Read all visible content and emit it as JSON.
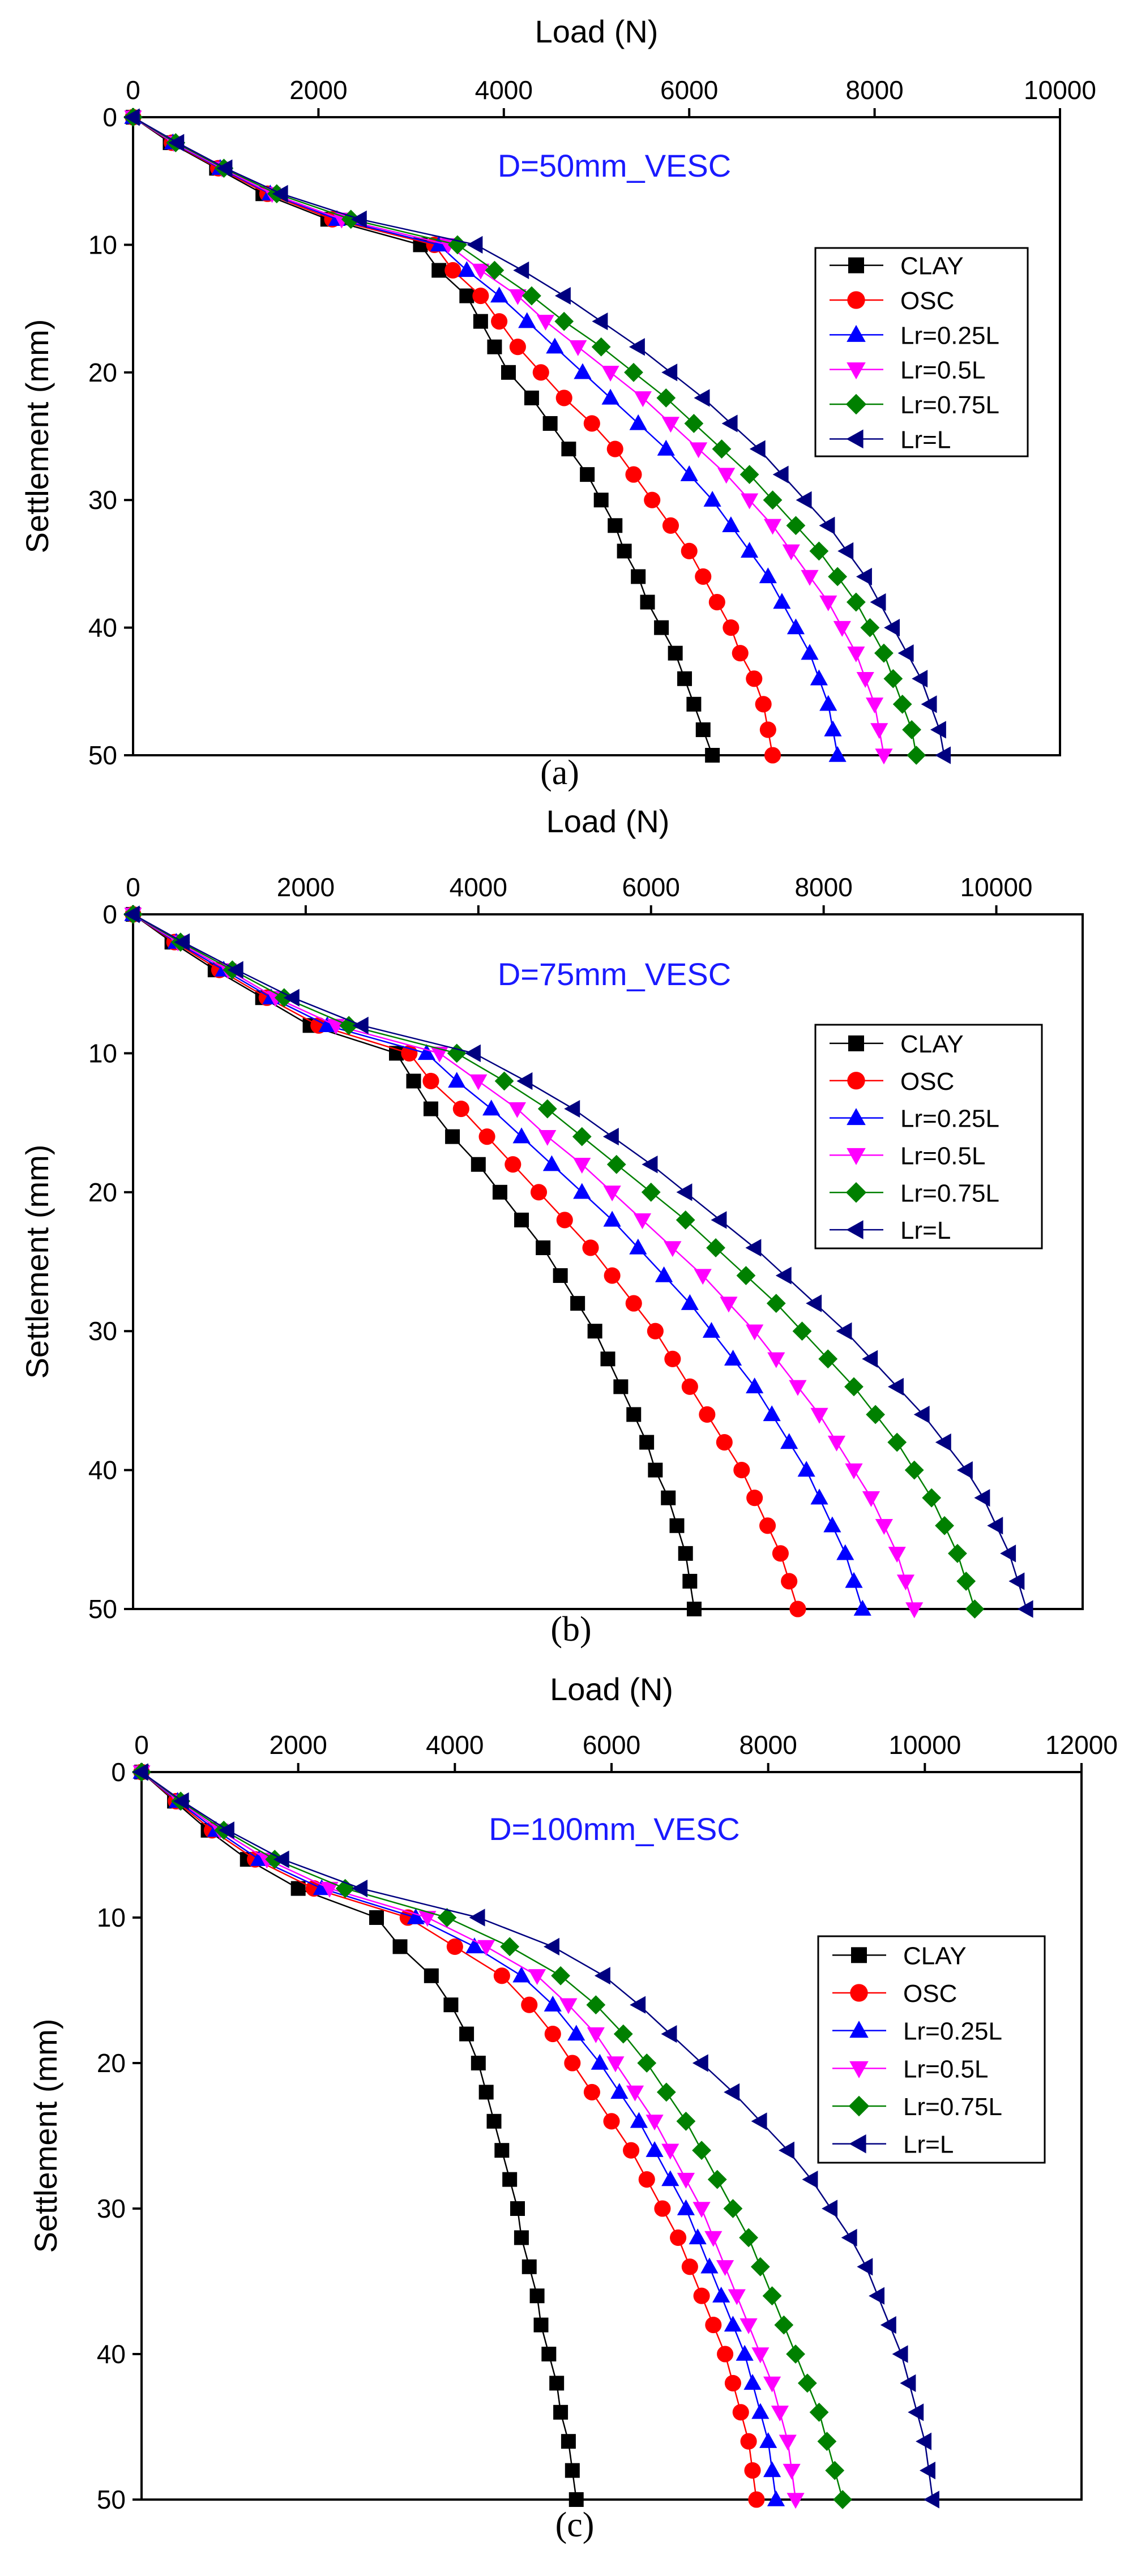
{
  "colors": {
    "axis": "#000000",
    "text": "#000000",
    "title": "#1a1aff",
    "clay": "#000000",
    "osc": "#ff0000",
    "lr025": "#0000ff",
    "lr05": "#ff00ff",
    "lr075": "#008000",
    "lr1": "#000080"
  },
  "chart_data": [
    {
      "type": "line",
      "panel_label": "(a)",
      "title": "D=50mm_VESC",
      "xlabel": "Load (N)",
      "ylabel": "Settlement (mm)",
      "xlim": [
        0,
        10000
      ],
      "ylim": [
        0,
        50
      ],
      "x_ticks": [
        0,
        2000,
        4000,
        6000,
        8000,
        10000
      ],
      "x_tick_labels": [
        "0",
        "2000",
        "4000",
        "6000",
        "8000",
        "10000"
      ],
      "y_ticks": [
        0,
        10,
        20,
        30,
        40,
        50
      ],
      "y_tick_labels": [
        "0",
        "10",
        "20",
        "30",
        "40",
        "50"
      ],
      "y_axis_inverted": true,
      "x_axis_position": "top",
      "legend_position": "right",
      "y": [
        0,
        2,
        4,
        6,
        8,
        10,
        12,
        14,
        16,
        18,
        20,
        22,
        24,
        26,
        28,
        30,
        32,
        34,
        36,
        38,
        40,
        42,
        44,
        46,
        48,
        50
      ],
      "series": [
        {
          "name": "CLAY",
          "marker": "square",
          "values": [
            0,
            400,
            900,
            1400,
            2100,
            3100,
            3300,
            3600,
            3750,
            3900,
            4050,
            4300,
            4500,
            4700,
            4900,
            5050,
            5200,
            5300,
            5450,
            5550,
            5700,
            5850,
            5950,
            6050,
            6150,
            6250
          ]
        },
        {
          "name": "OSC",
          "marker": "circle",
          "values": [
            0,
            420,
            920,
            1450,
            2150,
            3250,
            3450,
            3750,
            3950,
            4150,
            4400,
            4650,
            4950,
            5200,
            5400,
            5600,
            5800,
            6000,
            6150,
            6300,
            6450,
            6550,
            6700,
            6800,
            6850,
            6900
          ]
        },
        {
          "name": "Lr=0.25L",
          "marker": "triangle-up",
          "values": [
            0,
            430,
            940,
            1480,
            2200,
            3300,
            3600,
            3950,
            4250,
            4550,
            4850,
            5150,
            5450,
            5750,
            6000,
            6250,
            6450,
            6650,
            6850,
            7000,
            7150,
            7300,
            7400,
            7500,
            7550,
            7600
          ]
        },
        {
          "name": "Lr=0.5L",
          "marker": "triangle-down",
          "values": [
            0,
            440,
            960,
            1500,
            2250,
            3400,
            3750,
            4150,
            4450,
            4800,
            5150,
            5500,
            5800,
            6100,
            6400,
            6650,
            6900,
            7100,
            7300,
            7500,
            7650,
            7800,
            7900,
            8000,
            8050,
            8100
          ]
        },
        {
          "name": "Lr=0.75L",
          "marker": "diamond",
          "values": [
            0,
            460,
            980,
            1550,
            2350,
            3500,
            3900,
            4300,
            4650,
            5050,
            5400,
            5750,
            6050,
            6350,
            6650,
            6900,
            7150,
            7400,
            7600,
            7800,
            7950,
            8100,
            8200,
            8300,
            8400,
            8450
          ]
        },
        {
          "name": "Lr=L",
          "marker": "triangle-left",
          "values": [
            0,
            480,
            1000,
            1600,
            2450,
            3700,
            4200,
            4650,
            5050,
            5450,
            5800,
            6150,
            6450,
            6750,
            7000,
            7250,
            7500,
            7700,
            7900,
            8050,
            8200,
            8350,
            8500,
            8600,
            8700,
            8750
          ]
        }
      ]
    },
    {
      "type": "line",
      "panel_label": "(b)",
      "title": "D=75mm_VESC",
      "xlabel": "Load (N)",
      "ylabel": "Settlement (mm)",
      "xlim": [
        0,
        11000
      ],
      "ylim": [
        0,
        50
      ],
      "x_ticks": [
        0,
        2000,
        4000,
        6000,
        8000,
        10000
      ],
      "x_tick_labels": [
        "0",
        "2000",
        "4000",
        "6000",
        "8000",
        "10000"
      ],
      "y_ticks": [
        0,
        10,
        20,
        30,
        40,
        50
      ],
      "y_tick_labels": [
        "0",
        "10",
        "20",
        "30",
        "40",
        "50"
      ],
      "y_axis_inverted": true,
      "x_axis_position": "top",
      "legend_position": "right",
      "y": [
        0,
        2,
        4,
        6,
        8,
        10,
        12,
        14,
        16,
        18,
        20,
        22,
        24,
        26,
        28,
        30,
        32,
        34,
        36,
        38,
        40,
        42,
        44,
        46,
        48,
        50
      ],
      "series": [
        {
          "name": "CLAY",
          "marker": "square",
          "values": [
            0,
            450,
            950,
            1500,
            2050,
            3050,
            3250,
            3450,
            3700,
            4000,
            4250,
            4500,
            4750,
            4950,
            5150,
            5350,
            5500,
            5650,
            5800,
            5950,
            6050,
            6200,
            6300,
            6400,
            6450,
            6500
          ]
        },
        {
          "name": "OSC",
          "marker": "circle",
          "values": [
            0,
            480,
            1000,
            1550,
            2150,
            3200,
            3450,
            3800,
            4100,
            4400,
            4700,
            5000,
            5300,
            5550,
            5800,
            6050,
            6250,
            6450,
            6650,
            6850,
            7050,
            7200,
            7350,
            7500,
            7600,
            7700
          ]
        },
        {
          "name": "Lr=0.25L",
          "marker": "triangle-up",
          "values": [
            0,
            500,
            1050,
            1600,
            2250,
            3400,
            3750,
            4150,
            4500,
            4850,
            5200,
            5550,
            5850,
            6150,
            6450,
            6700,
            6950,
            7200,
            7400,
            7600,
            7800,
            7950,
            8100,
            8250,
            8350,
            8450
          ]
        },
        {
          "name": "Lr=0.5L",
          "marker": "triangle-down",
          "values": [
            0,
            520,
            1100,
            1650,
            2350,
            3550,
            4000,
            4450,
            4800,
            5200,
            5550,
            5900,
            6250,
            6600,
            6900,
            7200,
            7450,
            7700,
            7950,
            8150,
            8350,
            8550,
            8700,
            8850,
            8950,
            9050
          ]
        },
        {
          "name": "Lr=0.75L",
          "marker": "diamond",
          "values": [
            0,
            550,
            1150,
            1750,
            2500,
            3750,
            4300,
            4800,
            5200,
            5600,
            6000,
            6400,
            6750,
            7100,
            7450,
            7750,
            8050,
            8350,
            8600,
            8850,
            9050,
            9250,
            9400,
            9550,
            9650,
            9750
          ]
        },
        {
          "name": "Lr=L",
          "marker": "triangle-left",
          "values": [
            0,
            580,
            1200,
            1850,
            2650,
            3950,
            4550,
            5100,
            5550,
            6000,
            6400,
            6800,
            7200,
            7550,
            7900,
            8250,
            8550,
            8850,
            9150,
            9400,
            9650,
            9850,
            10000,
            10150,
            10250,
            10350
          ]
        }
      ]
    },
    {
      "type": "line",
      "panel_label": "(c)",
      "title": "D=100mm_VESC",
      "xlabel": "Load (N)",
      "ylabel": "Settlement (mm)",
      "xlim": [
        0,
        12000
      ],
      "ylim": [
        0,
        50
      ],
      "x_ticks": [
        0,
        2000,
        4000,
        6000,
        8000,
        10000,
        12000
      ],
      "x_tick_labels": [
        "0",
        "2000",
        "4000",
        "6000",
        "8000",
        "10000",
        "12000"
      ],
      "y_ticks": [
        0,
        10,
        20,
        30,
        40,
        50
      ],
      "y_tick_labels": [
        "0",
        "10",
        "20",
        "30",
        "40",
        "50"
      ],
      "y_axis_inverted": true,
      "x_axis_position": "top",
      "legend_position": "right",
      "y": [
        0,
        2,
        4,
        6,
        8,
        10,
        12,
        14,
        16,
        18,
        20,
        22,
        24,
        26,
        28,
        30,
        32,
        34,
        36,
        38,
        40,
        42,
        44,
        46,
        48,
        50
      ],
      "series": [
        {
          "name": "CLAY",
          "marker": "square",
          "values": [
            0,
            420,
            850,
            1350,
            2000,
            3000,
            3300,
            3700,
            3950,
            4150,
            4300,
            4400,
            4500,
            4600,
            4700,
            4800,
            4850,
            4950,
            5050,
            5100,
            5200,
            5300,
            5350,
            5450,
            5500,
            5550
          ]
        },
        {
          "name": "OSC",
          "marker": "circle",
          "values": [
            0,
            440,
            900,
            1450,
            2200,
            3400,
            4000,
            4600,
            4950,
            5250,
            5500,
            5750,
            6000,
            6250,
            6450,
            6650,
            6850,
            7000,
            7150,
            7300,
            7450,
            7550,
            7650,
            7750,
            7800,
            7850
          ]
        },
        {
          "name": "Lr=0.25L",
          "marker": "triangle-up",
          "values": [
            0,
            460,
            950,
            1500,
            2300,
            3500,
            4250,
            4850,
            5250,
            5550,
            5850,
            6100,
            6350,
            6550,
            6750,
            6950,
            7100,
            7250,
            7400,
            7550,
            7700,
            7800,
            7900,
            8000,
            8050,
            8100
          ]
        },
        {
          "name": "Lr=0.5L",
          "marker": "triangle-down",
          "values": [
            0,
            480,
            1000,
            1600,
            2400,
            3650,
            4400,
            5050,
            5450,
            5800,
            6050,
            6300,
            6550,
            6750,
            6950,
            7150,
            7300,
            7450,
            7600,
            7750,
            7900,
            8050,
            8150,
            8250,
            8300,
            8350
          ]
        },
        {
          "name": "Lr=0.75L",
          "marker": "diamond",
          "values": [
            0,
            500,
            1050,
            1700,
            2600,
            3900,
            4700,
            5350,
            5800,
            6150,
            6450,
            6700,
            6950,
            7150,
            7350,
            7550,
            7750,
            7900,
            8050,
            8200,
            8350,
            8500,
            8650,
            8750,
            8850,
            8950
          ]
        },
        {
          "name": "Lr=L",
          "marker": "triangle-left",
          "values": [
            0,
            520,
            1100,
            1800,
            2800,
            4300,
            5250,
            5900,
            6350,
            6750,
            7150,
            7550,
            7900,
            8250,
            8550,
            8800,
            9050,
            9250,
            9400,
            9550,
            9700,
            9800,
            9900,
            10000,
            10050,
            10100
          ]
        }
      ]
    }
  ]
}
